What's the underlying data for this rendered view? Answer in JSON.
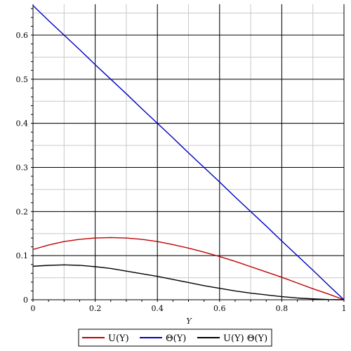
{
  "chart_data": {
    "type": "line",
    "title": "",
    "xlabel": "Y",
    "ylabel": "",
    "xlim": [
      0,
      1
    ],
    "ylim": [
      0,
      0.67
    ],
    "grid": true,
    "legend_position": "bottom",
    "x_ticks": [
      0,
      0.2,
      0.4,
      0.6,
      0.8,
      1
    ],
    "x_tick_labels": [
      "0",
      "0.2",
      "0.4",
      "0.6",
      "0.8",
      "1"
    ],
    "y_ticks": [
      0,
      0.1,
      0.2,
      0.3,
      0.4,
      0.5,
      0.6
    ],
    "y_tick_labels": [
      "0",
      "0.1",
      "0.2",
      "0.3",
      "0.4",
      "0.5",
      "0.6"
    ],
    "x": [
      0,
      0.05,
      0.1,
      0.15,
      0.2,
      0.25,
      0.3,
      0.35,
      0.4,
      0.45,
      0.5,
      0.55,
      0.6,
      0.65,
      0.7,
      0.75,
      0.8,
      0.85,
      0.9,
      0.95,
      1.0
    ],
    "series": [
      {
        "name": "U(Y)",
        "color": "#c00000",
        "values": [
          0.114,
          0.124,
          0.132,
          0.137,
          0.14,
          0.141,
          0.14,
          0.137,
          0.132,
          0.125,
          0.117,
          0.108,
          0.098,
          0.087,
          0.075,
          0.063,
          0.051,
          0.038,
          0.025,
          0.013,
          0.0
        ]
      },
      {
        "name": "Θ(Y)",
        "color": "#0000c0",
        "values": [
          0.667,
          0.633,
          0.6,
          0.567,
          0.533,
          0.5,
          0.467,
          0.433,
          0.4,
          0.367,
          0.333,
          0.3,
          0.267,
          0.233,
          0.2,
          0.167,
          0.133,
          0.1,
          0.067,
          0.033,
          0.0
        ]
      },
      {
        "name": "U(Y) Θ(Y)",
        "color": "#000000",
        "values": [
          0.076,
          0.078,
          0.079,
          0.078,
          0.075,
          0.071,
          0.065,
          0.059,
          0.053,
          0.046,
          0.039,
          0.032,
          0.026,
          0.02,
          0.015,
          0.011,
          0.007,
          0.004,
          0.002,
          0.0004,
          0.0
        ]
      }
    ]
  },
  "legend": {
    "items": [
      {
        "label": "U(Y)",
        "color": "#c00000",
        "name": "legend-u"
      },
      {
        "label": "Θ(Y)",
        "color": "#0000c0",
        "name": "legend-theta"
      },
      {
        "label": "U(Y) Θ(Y)",
        "color": "#000000",
        "name": "legend-product"
      }
    ]
  }
}
